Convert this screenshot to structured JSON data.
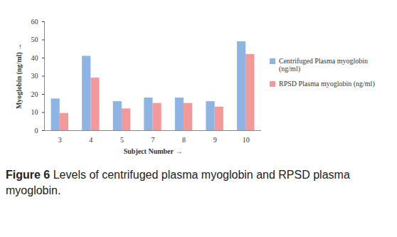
{
  "chart_data": {
    "type": "bar",
    "title": "Figure 6 Levels of centrifuged plasma myoglobin and RPSD plasma myoglobin.",
    "x_label": "Subject Number",
    "y_label": "Myoglobin (ng/ml)",
    "categories": [
      "3",
      "4",
      "5",
      "7",
      "8",
      "9",
      "10"
    ],
    "series": [
      {
        "name": "Centrifuged Plasma myoglobin (ng/ml)",
        "color": "#8eb4e3",
        "values": [
          17.5,
          41,
          16,
          18,
          18,
          16,
          49
        ]
      },
      {
        "name": "RPSD Plasma myoglobin (ng/ml)",
        "color": "#f4999a",
        "values": [
          9.5,
          29,
          12,
          15,
          15,
          13,
          42
        ]
      }
    ],
    "ylim": [
      0,
      60
    ],
    "yticks": [
      0,
      10,
      20,
      30,
      40,
      50,
      60
    ],
    "grid": false,
    "legend": "right"
  }
}
